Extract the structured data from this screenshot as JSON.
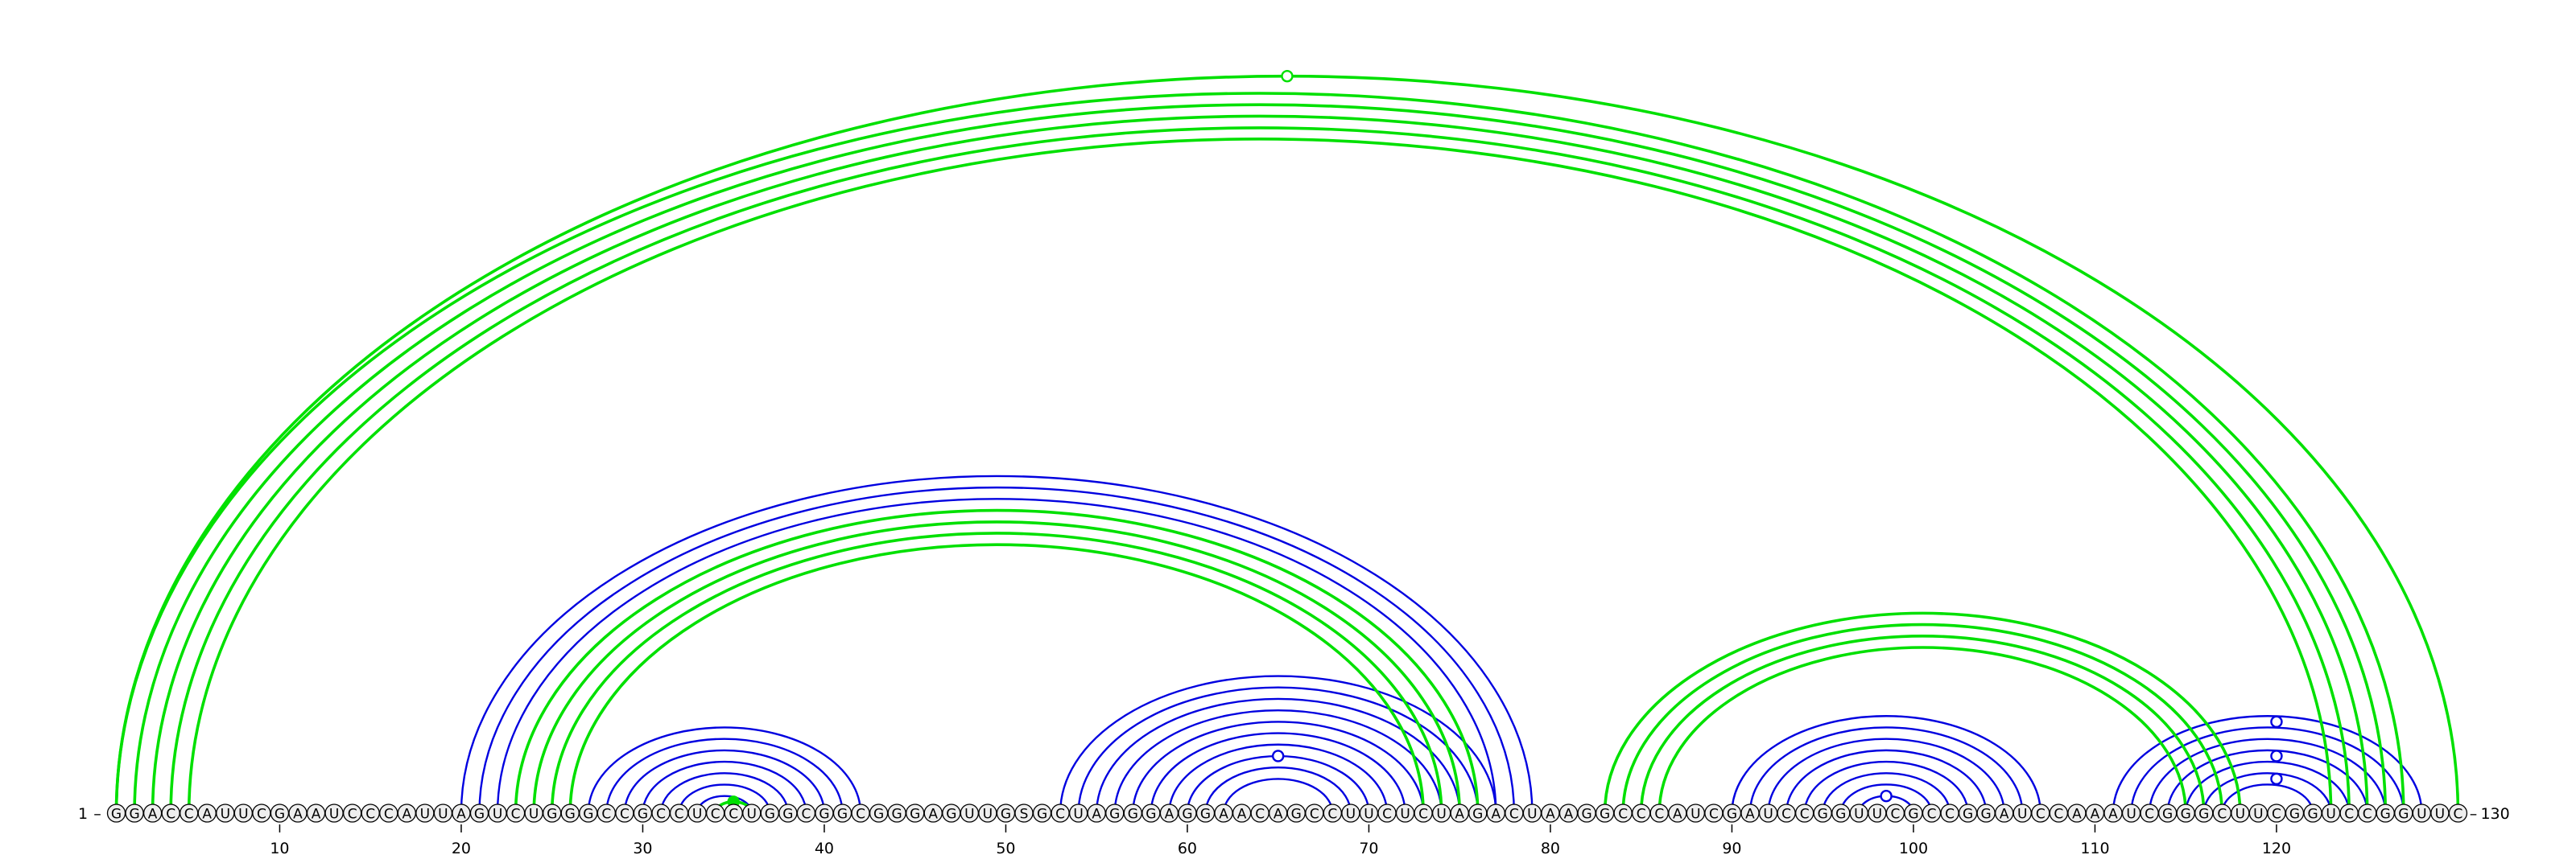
{
  "diagram": {
    "sequence": "GGACCAUUCGAAUCCCAUUAGUCUGGGCCGCCUCCUGGCGGCGGGAGUUGSGCUAGGGAGGAACAGCCUUCUCUAGACUAAGGCCCAUCGAUCCGGUUCGCCGGAUCCAAAUCGGGCUUCGGUCCGGUUC",
    "start_label": "1",
    "end_label": "130",
    "ticks": [
      10,
      20,
      30,
      40,
      50,
      60,
      70,
      80,
      90,
      100,
      110,
      120
    ],
    "colors": {
      "blue": "#0000e0",
      "green": "#00e000",
      "nucleotide_fill": "#eeeeee",
      "stroke": "#000000"
    },
    "blue_helices": [
      {
        "i": 20,
        "j": 79,
        "length": 4
      },
      {
        "i": 27,
        "j": 42,
        "length": 7
      },
      {
        "i": 53,
        "j": 77,
        "length": 10
      },
      {
        "i": 90,
        "j": 107,
        "length": 8
      },
      {
        "i": 111,
        "j": 128,
        "length": 7
      }
    ],
    "green_helices": [
      {
        "i": 1,
        "j": 127,
        "length": 5
      },
      {
        "i": 1,
        "j": 130,
        "length": 1
      },
      {
        "i": 23,
        "j": 76,
        "length": 4
      },
      {
        "i": 34,
        "j": 36,
        "length": 1
      },
      {
        "i": 83,
        "j": 118,
        "length": 4
      }
    ],
    "markers": [
      {
        "i": 1,
        "j": 130,
        "color": "green",
        "filled": false
      },
      {
        "i": 34,
        "j": 36,
        "color": "green",
        "filled": true
      },
      {
        "i": 60,
        "j": 70,
        "color": "blue",
        "filled": false
      },
      {
        "i": 97,
        "j": 100,
        "color": "blue",
        "filled": false
      },
      {
        "i": 112,
        "j": 128,
        "color": "blue",
        "filled": false
      },
      {
        "i": 115,
        "j": 125,
        "color": "blue",
        "filled": false
      },
      {
        "i": 117,
        "j": 123,
        "color": "blue",
        "filled": false
      }
    ]
  }
}
